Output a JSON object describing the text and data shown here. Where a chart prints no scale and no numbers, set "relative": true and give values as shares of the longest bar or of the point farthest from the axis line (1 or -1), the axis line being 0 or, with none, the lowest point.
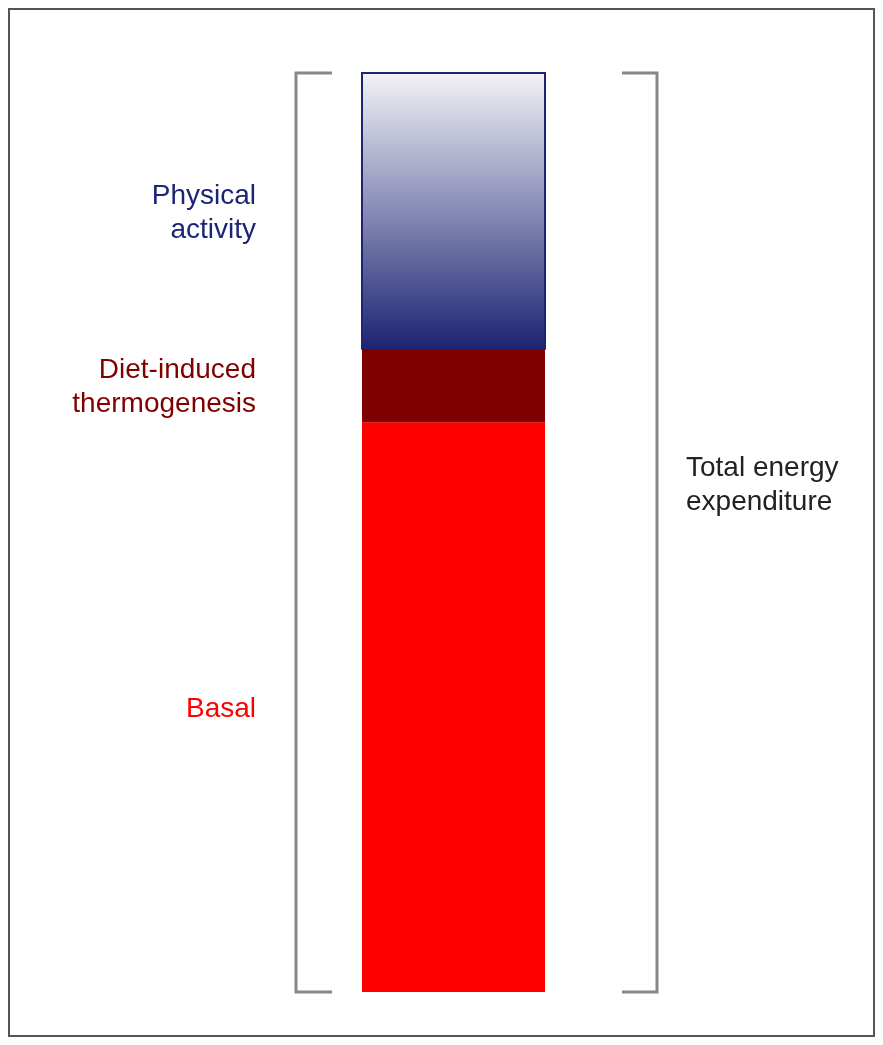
{
  "chart_data": {
    "type": "bar",
    "stacked": true,
    "relative": true,
    "categories": [
      null
    ],
    "series": [
      {
        "name": "Basal",
        "color": "#ff0000",
        "values": [
          0.62
        ]
      },
      {
        "name": "Diet-induced thermogenesis",
        "color": "#800000",
        "values": [
          0.08
        ]
      },
      {
        "name": "Physical activity",
        "color": "#1c2473",
        "values": [
          0.3
        ]
      }
    ],
    "annotations": [
      "Total energy expenditure"
    ]
  }
}
